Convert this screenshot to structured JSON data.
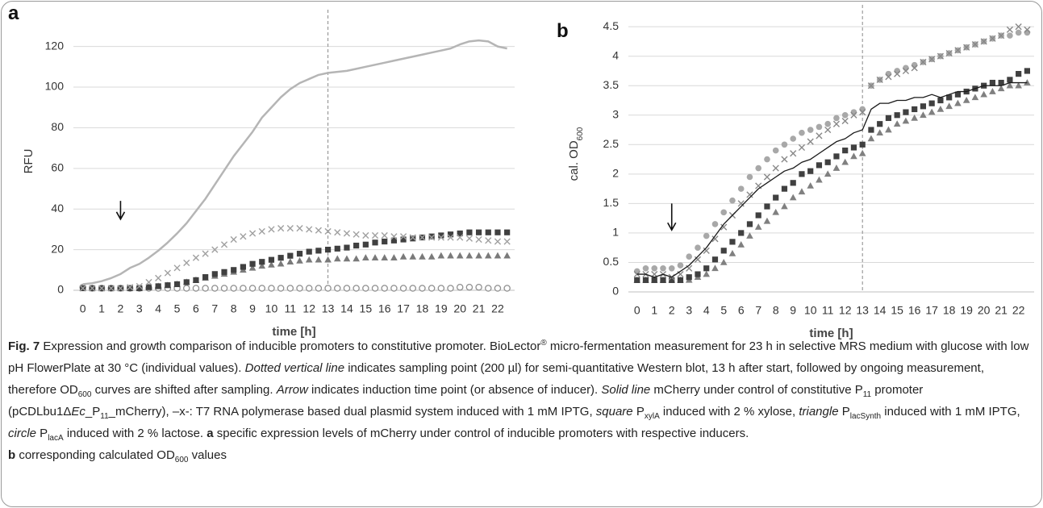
{
  "chart_data": [
    {
      "type": "line",
      "panel_label": "a",
      "xlabel": "time [h]",
      "ylabel": "RFU",
      "x": [
        0,
        0.5,
        1,
        1.5,
        2,
        2.5,
        3,
        3.5,
        4,
        4.5,
        5,
        5.5,
        6,
        6.5,
        7,
        7.5,
        8,
        8.5,
        9,
        9.5,
        10,
        10.5,
        11,
        11.5,
        12,
        12.5,
        13,
        13.5,
        14,
        14.5,
        15,
        15.5,
        16,
        16.5,
        17,
        17.5,
        18,
        18.5,
        19,
        19.5,
        20,
        20.5,
        21,
        21.5,
        22,
        22.5
      ],
      "xlim": [
        -0.5,
        22.9
      ],
      "xticks": [
        0,
        1,
        2,
        3,
        4,
        5,
        6,
        7,
        8,
        9,
        10,
        11,
        12,
        13,
        14,
        15,
        16,
        17,
        18,
        19,
        20,
        21,
        22
      ],
      "ylim": [
        0,
        127
      ],
      "yticks": [
        0,
        20,
        40,
        60,
        80,
        100,
        120
      ],
      "grid": true,
      "vline": 13,
      "arrow": {
        "x": 2,
        "y": [
          44,
          35
        ]
      },
      "series": [
        {
          "color": "#909090",
          "marker": "circle-open",
          "values": [
            1.5,
            1,
            1,
            1,
            1,
            1,
            1,
            1,
            1,
            1,
            1,
            1,
            1,
            1,
            1,
            1,
            1,
            1,
            1,
            1,
            1,
            1,
            1,
            1,
            1,
            1,
            1,
            1,
            1,
            1,
            1,
            1,
            1,
            1,
            1,
            1,
            1,
            1,
            1,
            1,
            1.5,
            1.5,
            1.5,
            1,
            1,
            1
          ]
        },
        {
          "color": "#7a7a7a",
          "marker": "triangle",
          "values": [
            1,
            1,
            1,
            1,
            1,
            1,
            1,
            1.5,
            2,
            2.5,
            3,
            4,
            5,
            6,
            7,
            8,
            9,
            10,
            11,
            12,
            12.5,
            13,
            14,
            14.5,
            15,
            15,
            15,
            15.5,
            15.5,
            15.5,
            16,
            16,
            16,
            16,
            16.5,
            16.5,
            16.5,
            16.5,
            17,
            17,
            17,
            17,
            17,
            17,
            17,
            17
          ]
        },
        {
          "color": "#404040",
          "marker": "square",
          "values": [
            1,
            1,
            1,
            1,
            1,
            1,
            1,
            1.5,
            2,
            2.5,
            3,
            4,
            5,
            6.5,
            8,
            9,
            10,
            11.5,
            13,
            14,
            15,
            16,
            17,
            18,
            19,
            19.5,
            20,
            20.5,
            21,
            22,
            22.5,
            23.5,
            24,
            24.5,
            25,
            25.5,
            26,
            26.5,
            27,
            27.5,
            28,
            28.5,
            28.5,
            28.5,
            28.5,
            28.5
          ]
        },
        {
          "color": "#a0a0a0",
          "marker": "x",
          "values": [
            1,
            1,
            1,
            1,
            1,
            1.5,
            2,
            4,
            6,
            8.5,
            11,
            13.5,
            16,
            18,
            20,
            22.5,
            25,
            26.5,
            28,
            29,
            30,
            30.5,
            30.5,
            30.5,
            30,
            29.5,
            29,
            28.5,
            28,
            27.5,
            27,
            27,
            27,
            26.5,
            26.5,
            26,
            26,
            26,
            26,
            26,
            26,
            25.5,
            25,
            24.5,
            24,
            24
          ]
        },
        {
          "color": "#b5b5b5",
          "marker": "none",
          "values": [
            3,
            3.5,
            4.5,
            6,
            8,
            11,
            13,
            16,
            19.5,
            23.5,
            28,
            33,
            39,
            45,
            52,
            59,
            66,
            72,
            78,
            85,
            90,
            95,
            99,
            102,
            104,
            106,
            107,
            107.5,
            108,
            109,
            110,
            111,
            112,
            113,
            114,
            115,
            116,
            117,
            118,
            119,
            121,
            122.5,
            123,
            122.5,
            120,
            119
          ]
        }
      ]
    },
    {
      "type": "line",
      "panel_label": "b",
      "xlabel": "time [h]",
      "ylabel": "cal. OD",
      "ylabel_sub": "600",
      "x": [
        0,
        0.5,
        1,
        1.5,
        2,
        2.5,
        3,
        3.5,
        4,
        4.5,
        5,
        5.5,
        6,
        6.5,
        7,
        7.5,
        8,
        8.5,
        9,
        9.5,
        10,
        10.5,
        11,
        11.5,
        12,
        12.5,
        13,
        13.5,
        14,
        14.5,
        15,
        15.5,
        16,
        16.5,
        17,
        17.5,
        18,
        18.5,
        19,
        19.5,
        20,
        20.5,
        21,
        21.5,
        22,
        22.5
      ],
      "xlim": [
        -0.5,
        22.9
      ],
      "xticks": [
        0,
        1,
        2,
        3,
        4,
        5,
        6,
        7,
        8,
        9,
        10,
        11,
        12,
        13,
        14,
        15,
        16,
        17,
        18,
        19,
        20,
        21,
        22
      ],
      "ylim": [
        0,
        4.68
      ],
      "yticks": [
        0,
        0.5,
        1,
        1.5,
        2,
        2.5,
        3,
        3.5,
        4,
        4.5
      ],
      "grid": true,
      "vline": 13,
      "arrow": {
        "x": 2,
        "y": [
          1.5,
          1.05
        ]
      },
      "series": [
        {
          "color": "#a8a8a8",
          "marker": "circle",
          "values": [
            0.35,
            0.4,
            0.4,
            0.4,
            0.4,
            0.45,
            0.6,
            0.75,
            0.95,
            1.15,
            1.35,
            1.55,
            1.75,
            1.95,
            2.1,
            2.25,
            2.4,
            2.5,
            2.6,
            2.7,
            2.75,
            2.8,
            2.85,
            2.95,
            3,
            3.05,
            3.1,
            3.5,
            3.6,
            3.7,
            3.75,
            3.8,
            3.85,
            3.9,
            3.95,
            4,
            4.05,
            4.1,
            4.15,
            4.2,
            4.25,
            4.3,
            4.35,
            4.35,
            4.4,
            4.4
          ]
        },
        {
          "color": "#808080",
          "marker": "triangle",
          "values": [
            0.2,
            0.2,
            0.2,
            0.2,
            0.2,
            0.2,
            0.2,
            0.25,
            0.3,
            0.4,
            0.5,
            0.65,
            0.8,
            0.95,
            1.1,
            1.2,
            1.35,
            1.45,
            1.6,
            1.7,
            1.8,
            1.9,
            2,
            2.1,
            2.2,
            2.3,
            2.35,
            2.6,
            2.7,
            2.75,
            2.85,
            2.9,
            2.95,
            3,
            3.05,
            3.1,
            3.15,
            3.2,
            3.25,
            3.3,
            3.35,
            3.4,
            3.45,
            3.5,
            3.5,
            3.55
          ]
        },
        {
          "color": "#404040",
          "marker": "square",
          "values": [
            0.2,
            0.2,
            0.2,
            0.2,
            0.2,
            0.2,
            0.25,
            0.3,
            0.4,
            0.55,
            0.7,
            0.85,
            1,
            1.15,
            1.3,
            1.45,
            1.6,
            1.75,
            1.85,
            2,
            2.05,
            2.15,
            2.2,
            2.3,
            2.4,
            2.45,
            2.5,
            2.75,
            2.85,
            2.95,
            3,
            3.05,
            3.1,
            3.15,
            3.2,
            3.25,
            3.3,
            3.35,
            3.4,
            3.45,
            3.5,
            3.55,
            3.55,
            3.6,
            3.7,
            3.75
          ]
        },
        {
          "color": "#888888",
          "marker": "x",
          "values": [
            0.3,
            0.3,
            0.3,
            0.3,
            0.25,
            0.3,
            0.4,
            0.55,
            0.7,
            0.9,
            1.1,
            1.3,
            1.5,
            1.65,
            1.8,
            1.95,
            2.1,
            2.25,
            2.35,
            2.45,
            2.55,
            2.65,
            2.75,
            2.85,
            2.9,
            3,
            3.05,
            3.5,
            3.6,
            3.65,
            3.7,
            3.75,
            3.8,
            3.9,
            3.95,
            4,
            4.05,
            4.1,
            4.15,
            4.2,
            4.25,
            4.3,
            4.35,
            4.45,
            4.5,
            4.45
          ]
        },
        {
          "color": "#1a1a1a",
          "marker": "none",
          "values": [
            0.3,
            0.3,
            0.25,
            0.3,
            0.25,
            0.35,
            0.45,
            0.6,
            0.75,
            0.95,
            1.15,
            1.3,
            1.45,
            1.6,
            1.75,
            1.85,
            1.95,
            2.05,
            2.1,
            2.2,
            2.25,
            2.35,
            2.45,
            2.55,
            2.6,
            2.7,
            2.75,
            3.1,
            3.2,
            3.2,
            3.25,
            3.25,
            3.3,
            3.3,
            3.35,
            3.3,
            3.35,
            3.4,
            3.4,
            3.45,
            3.5,
            3.5,
            3.5,
            3.55,
            3.55,
            3.55
          ]
        }
      ]
    }
  ],
  "caption": {
    "runs": [
      "Fig. 7",
      "  Expression and growth comparison of inducible promoters to constitutive promoter. BioLector",
      "®",
      " micro-fermentation measurement for 23 h in selective MRS medium with glucose with low pH FlowerPlate at 30 °C (individual values). ",
      "Dotted vertical line",
      " indicates sampling point (200 µl) for semi-quantitative Western blot, 13 h after start, followed by ongoing measurement, therefore OD",
      "600",
      " curves are shifted after sampling. ",
      "Arrow",
      " indicates induction time point (or absence of inducer). ",
      "Solid line",
      " mCherry under control of constitutive P",
      "11",
      " promoter (pCDLbu1Δ",
      "Ec",
      "_P",
      "11",
      "_mCherry), –x-: T7 RNA polymerase based dual plasmid system induced with 1 mM IPTG, ",
      "square",
      " P",
      "xylA",
      " induced with 2 % xylose, ",
      "triangle",
      " P",
      "lacSynth",
      " induced with 1 mM IPTG, ",
      "circle",
      " P",
      "lacA",
      " induced with 2 % lactose. ",
      "a",
      " specific expression levels of mCherry under control of inducible promoters with respective inducers. ",
      "b",
      " corresponding calculated OD",
      "600",
      " values"
    ]
  }
}
